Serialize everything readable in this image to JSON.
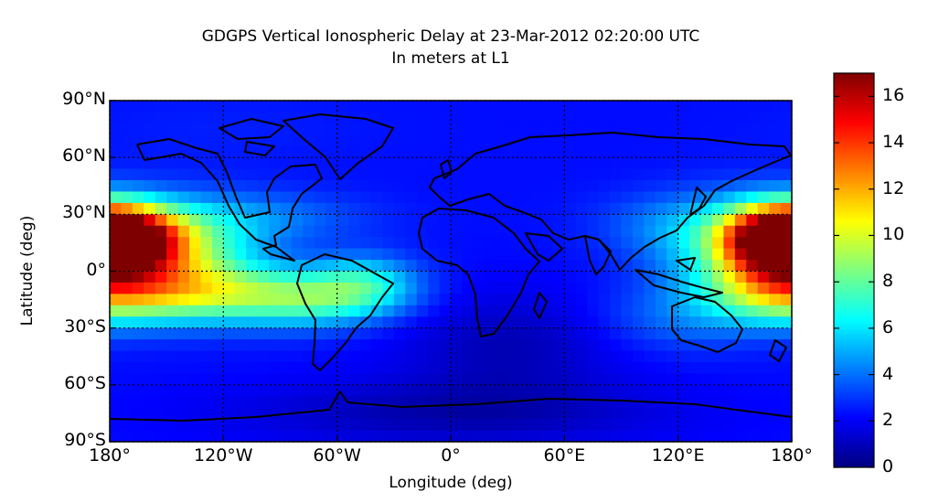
{
  "title": "GDGPS Vertical Ionospheric Delay at 23-Mar-2012 02:20:00 UTC",
  "subtitle": "In meters at L1",
  "map": {
    "xlabel": "Longitude (deg)",
    "ylabel": "Latitude (deg)",
    "x_ticks": [
      {
        "value": -180,
        "label": "180°"
      },
      {
        "value": -120,
        "label": "120°W"
      },
      {
        "value": -60,
        "label": "60°W"
      },
      {
        "value": 0,
        "label": "0°"
      },
      {
        "value": 60,
        "label": "60°E"
      },
      {
        "value": 120,
        "label": "120°E"
      },
      {
        "value": 180,
        "label": "180°"
      }
    ],
    "y_ticks": [
      {
        "value": 90,
        "label": "90°N"
      },
      {
        "value": 60,
        "label": "60°N"
      },
      {
        "value": 30,
        "label": "30°N"
      },
      {
        "value": 0,
        "label": "0°"
      },
      {
        "value": -30,
        "label": "30°S"
      },
      {
        "value": -60,
        "label": "60°S"
      },
      {
        "value": -90,
        "label": "90°S"
      }
    ],
    "xlim": [
      -180,
      180
    ],
    "ylim": [
      -90,
      90
    ],
    "grid": true
  },
  "colorbar": {
    "range": [
      0,
      17
    ],
    "ticks": [
      {
        "value": 0,
        "label": "0"
      },
      {
        "value": 2,
        "label": "2"
      },
      {
        "value": 4,
        "label": "4"
      },
      {
        "value": 6,
        "label": "6"
      },
      {
        "value": 8,
        "label": "8"
      },
      {
        "value": 10,
        "label": "10"
      },
      {
        "value": 12,
        "label": "12"
      },
      {
        "value": 14,
        "label": "14"
      },
      {
        "value": 16,
        "label": "16"
      }
    ],
    "colormap": [
      "#00007f",
      "#0000ff",
      "#007fff",
      "#00ffff",
      "#7fff7f",
      "#ffff00",
      "#ff7f00",
      "#ff0000",
      "#7f0000"
    ]
  },
  "chart_data": {
    "type": "heatmap",
    "title": "GDGPS Vertical Ionospheric Delay at 23-Mar-2012 02:20:00 UTC",
    "subtitle": "In meters at L1",
    "xlabel": "Longitude (deg)",
    "ylabel": "Latitude (deg)",
    "xlim": [
      -180,
      180
    ],
    "ylim": [
      -90,
      90
    ],
    "background_value": 2.3,
    "features": [
      {
        "lon": -175,
        "lat": 17,
        "value": 14.5,
        "slon": 22,
        "slat": 12
      },
      {
        "lon": -145,
        "lat": 12,
        "value": 7.5,
        "slon": 30,
        "slat": 16
      },
      {
        "lon": 172,
        "lat": 17,
        "value": 11.5,
        "slon": 20,
        "slat": 12
      },
      {
        "lon": 150,
        "lat": 12,
        "value": 5.5,
        "slon": 30,
        "slat": 18
      },
      {
        "lon": -170,
        "lat": -10,
        "value": 7.0,
        "slon": 35,
        "slat": 12
      },
      {
        "lon": -120,
        "lat": -12,
        "value": 6.5,
        "slon": 35,
        "slat": 11
      },
      {
        "lon": -70,
        "lat": -15,
        "value": 6.5,
        "slon": 30,
        "slat": 10
      },
      {
        "lon": -45,
        "lat": -5,
        "value": 5.5,
        "slon": 20,
        "slat": 10
      },
      {
        "lon": 170,
        "lat": -10,
        "value": 5.5,
        "slon": 25,
        "slat": 12
      },
      {
        "lon": -100,
        "lat": 28,
        "value": 4.0,
        "slon": 40,
        "slat": 10
      },
      {
        "lon": 120,
        "lat": 25,
        "value": 3.8,
        "slon": 30,
        "slat": 12
      },
      {
        "lon": 120,
        "lat": -25,
        "value": 3.8,
        "slon": 30,
        "slat": 12
      },
      {
        "lon": 30,
        "lat": -40,
        "value": 0.9,
        "slon": 40,
        "slat": 20
      },
      {
        "lon": 0,
        "lat": -75,
        "value": 0.8,
        "slon": 80,
        "slat": 12
      },
      {
        "lon": -120,
        "lat": 75,
        "value": 2.6,
        "slon": 60,
        "slat": 15
      }
    ]
  }
}
